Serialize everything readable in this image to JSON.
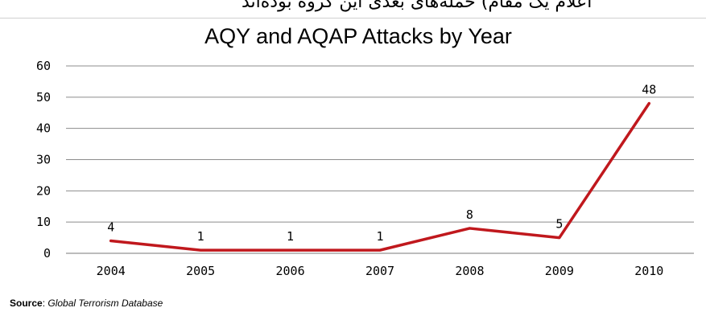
{
  "top_text": "اعلام یک مقام) حمله‌های بعدی این گروه بوده‌اند",
  "source": {
    "label": "Source",
    "value": "Global Terrorism Database"
  },
  "chart_data": {
    "type": "line",
    "title": "AQY and AQAP Attacks by Year",
    "xlabel": "",
    "ylabel": "",
    "categories": [
      "2004",
      "2005",
      "2006",
      "2007",
      "2008",
      "2009",
      "2010"
    ],
    "series": [
      {
        "values": [
          4,
          1,
          1,
          1,
          8,
          5,
          48
        ],
        "color": "#c0181d"
      }
    ],
    "ylim": [
      0,
      60
    ],
    "yticks": [
      0,
      10,
      20,
      30,
      40,
      50,
      60
    ],
    "grid": true,
    "legend": "none"
  }
}
